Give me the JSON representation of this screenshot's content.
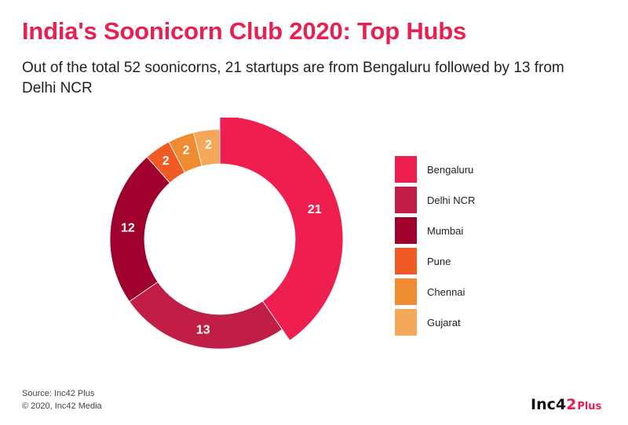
{
  "header": {
    "title": "India's Soonicorn Club 2020: Top Hubs",
    "subtitle": "Out of the total 52 soonicorns, 21 startups are from Bengaluru followed by 13 from Delhi NCR"
  },
  "chart_data": {
    "type": "pie",
    "style": "donut",
    "categories": [
      "Bengaluru",
      "Delhi NCR",
      "Mumbai",
      "Pune",
      "Chennai",
      "Gujarat"
    ],
    "values": [
      21,
      13,
      12,
      2,
      2,
      2
    ],
    "colors": [
      "#ee1f4f",
      "#c11e47",
      "#a0002c",
      "#f05a24",
      "#ef8b30",
      "#f4a85a"
    ],
    "highlighted": "Bengaluru",
    "legend_position": "right"
  },
  "footer": {
    "source_line1": "Source: Inc42 Plus",
    "source_line2": "© 2020, Inc42 Media"
  },
  "logo": {
    "text_main": "Inc4",
    "text_accent": "2",
    "text_plus": "Plus"
  }
}
